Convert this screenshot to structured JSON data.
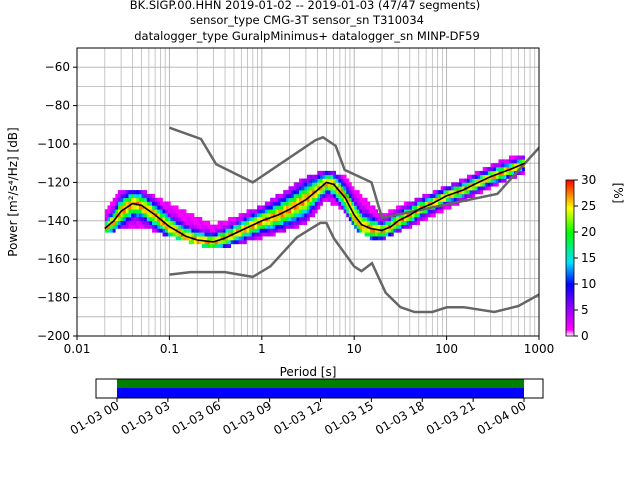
{
  "title_lines": [
    "BK.SIGP.00.HHN   2019-01-02 -- 2019-01-03  (47/47 segments)",
    "sensor_type CMG-3T sensor_sn T310034",
    "datalogger_type GuralpMinimus+ datalogger_sn MINP-DF59"
  ],
  "colorbar": {
    "ticks": [
      "0",
      "5",
      "10",
      "15",
      "20",
      "25",
      "30"
    ],
    "label": "[%]"
  },
  "chart_data": {
    "type": "heatmap",
    "xlabel": "Period [s]",
    "ylabel": "Power [m²/s⁴/Hz] [dB]",
    "x_scale": "log",
    "xlim": [
      0.01,
      1000
    ],
    "ylim": [
      -200,
      -50
    ],
    "grid": true,
    "x_tick_labels": [
      "0.01",
      "0.1",
      "1",
      "10",
      "100",
      "1000"
    ],
    "y_ticks": [
      -60,
      -80,
      -100,
      -120,
      -140,
      -160,
      -180,
      -200
    ],
    "noise_model_high": {
      "x": [
        0.1,
        0.22,
        0.32,
        0.8,
        3.8,
        4.6,
        6.3,
        7.9,
        15.4,
        20,
        354.8,
        10000
      ],
      "y": [
        -91.5,
        -97.4,
        -110.5,
        -120,
        -98,
        -96.5,
        -101,
        -113.5,
        -120,
        -138.5,
        -126,
        -48.5
      ]
    },
    "noise_model_low": {
      "x": [
        0.1,
        0.17,
        0.4,
        0.8,
        1.24,
        2.4,
        4.3,
        5,
        6,
        10,
        12,
        15.6,
        21.9,
        31.6,
        45,
        70,
        101,
        154,
        328,
        600,
        10000
      ],
      "y": [
        -168,
        -166.7,
        -166.7,
        -169.2,
        -163.7,
        -148.6,
        -141.1,
        -141.1,
        -149,
        -163.8,
        -166.2,
        -162.1,
        -177.5,
        -185,
        -187.5,
        -187.5,
        -185,
        -185,
        -187.5,
        -184.4,
        -151.5
      ]
    },
    "mode_curve": {
      "x": [
        0.02,
        0.025,
        0.03,
        0.04,
        0.05,
        0.07,
        0.1,
        0.15,
        0.2,
        0.3,
        0.4,
        0.6,
        1,
        1.5,
        2,
        3,
        4,
        5,
        6,
        8,
        10,
        12,
        15,
        20,
        25,
        30,
        40,
        50,
        70,
        100,
        150,
        200,
        300,
        500,
        700
      ],
      "y": [
        -144,
        -140,
        -135,
        -131,
        -132,
        -137,
        -143,
        -148,
        -150,
        -151,
        -149,
        -145,
        -140,
        -137,
        -134,
        -129,
        -124,
        -120,
        -121,
        -128,
        -137,
        -142,
        -144,
        -145,
        -143,
        -140,
        -137,
        -134,
        -131,
        -127,
        -124,
        -121,
        -117,
        -113,
        -110
      ]
    },
    "ppsd_density": {
      "x": [
        0.02,
        0.03,
        0.05,
        0.1,
        0.3,
        1,
        3,
        5,
        8,
        10,
        15,
        20,
        30,
        50,
        100,
        200,
        400,
        700
      ],
      "y_low": [
        -146,
        -143,
        -142,
        -147,
        -154,
        -148,
        -141,
        -128,
        -135,
        -143,
        -148,
        -149,
        -145,
        -140,
        -133,
        -126,
        -119,
        -114
      ],
      "y_high": [
        -137,
        -124,
        -125,
        -132,
        -143,
        -133,
        -118,
        -114,
        -118,
        -124,
        -132,
        -138,
        -133,
        -129,
        -123,
        -116,
        -109,
        -106
      ]
    },
    "colorbar_range": [
      0,
      30
    ],
    "time_axis": {
      "tick_labels": [
        "01-03 00",
        "01-03 03",
        "01-03 06",
        "01-03 09",
        "01-03 12",
        "01-03 15",
        "01-03 18",
        "01-03 21",
        "01-04 00"
      ],
      "coverage_start": 0,
      "coverage_end": 24,
      "bar_colors": [
        "#008000",
        "#0000ff"
      ]
    }
  }
}
